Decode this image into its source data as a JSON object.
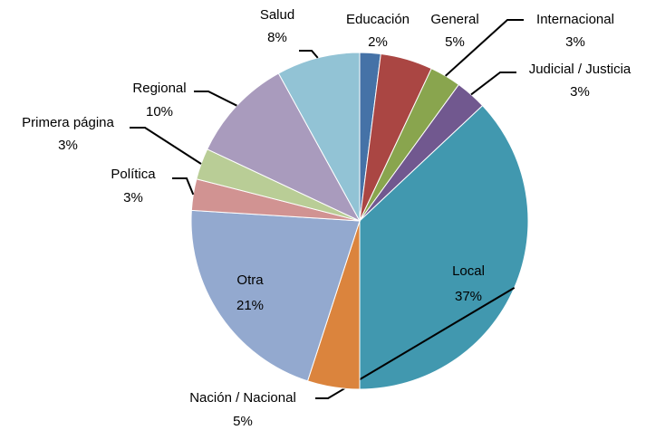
{
  "chart_data": {
    "type": "pie",
    "categories": [
      "Educación",
      "General",
      "Internacional",
      "Judicial / Justicia",
      "Local",
      "Nación / Nacional",
      "Otra",
      "Política",
      "Primera página",
      "Regional",
      "Salud"
    ],
    "values": [
      2,
      5,
      3,
      3,
      37,
      5,
      21,
      3,
      3,
      10,
      8
    ],
    "value_labels": [
      "2%",
      "5%",
      "3%",
      "3%",
      "37%",
      "5%",
      "21%",
      "3%",
      "3%",
      "10%",
      "8%"
    ],
    "colors": [
      "#4572a7",
      "#aa4643",
      "#89a54e",
      "#71588f",
      "#4198af",
      "#db843d",
      "#93a9cf",
      "#d19392",
      "#b9cd96",
      "#a99bbd",
      "#92c3d5"
    ]
  }
}
